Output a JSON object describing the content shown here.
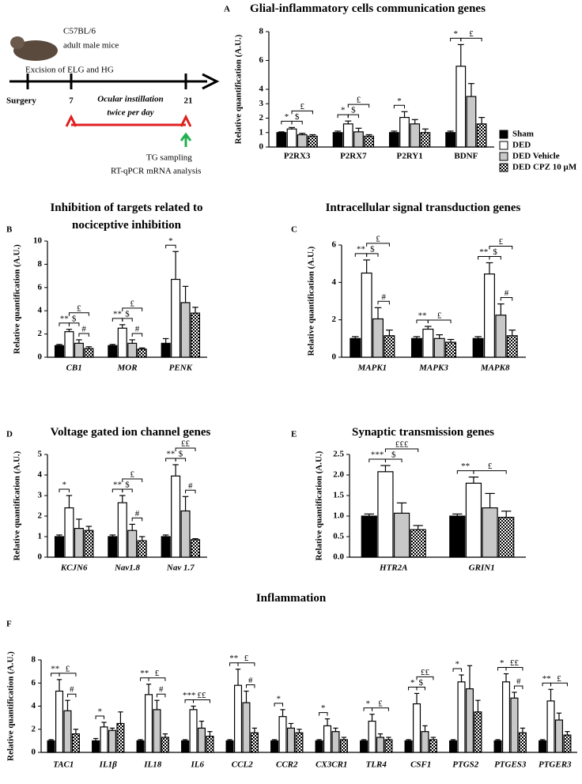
{
  "schematic": {
    "strain": "C57BL/6",
    "animals": "adult male mice",
    "procedure": "Excision of ELG and HG",
    "start": "Surgery",
    "day_start": "7",
    "treatment": "Ocular instillation",
    "frequency": "twice per day",
    "day_end": "21",
    "sampling": "TG sampling",
    "analysis": "RT-qPCR mRNA analysis"
  },
  "chart_data": [
    {
      "type": "bar",
      "panel": "A",
      "title": "Glial-inflammatory cells communication genes",
      "ylabel": "Relative quantification (A.U.)",
      "legend": "right",
      "italic_categories": false,
      "categories": [
        "P2RX3",
        "P2RX7",
        "P2RY1",
        "BDNF"
      ],
      "ylim": [
        0,
        8
      ],
      "yticks": [
        0,
        1,
        2,
        3,
        4,
        6,
        8
      ],
      "series": [
        {
          "name": "Sham",
          "color": "#000000",
          "values": [
            1,
            1,
            1,
            1
          ],
          "errors": [
            0.05,
            0.1,
            0.1,
            0.1
          ]
        },
        {
          "name": "DED",
          "color": "#ffffff",
          "values": [
            1.25,
            1.6,
            2.05,
            5.6
          ],
          "errors": [
            0.1,
            0.2,
            0.4,
            1.5
          ]
        },
        {
          "name": "DED Vehicle",
          "color": "#c8c8c8",
          "values": [
            0.85,
            1.05,
            1.6,
            3.5
          ],
          "errors": [
            0.1,
            0.25,
            0.3,
            0.9
          ]
        },
        {
          "name": "DED CPZ 10 µM",
          "color": "checker",
          "values": [
            0.75,
            0.75,
            1.0,
            1.6
          ],
          "errors": [
            0.1,
            0.1,
            0.25,
            0.45
          ]
        }
      ],
      "annotations": [
        {
          "label": "*",
          "category": 0,
          "from": 0,
          "to": 1
        },
        {
          "label": "$",
          "category": 0,
          "from": 1,
          "to": 2
        },
        {
          "label": "£",
          "category": 0,
          "from": 1,
          "to": 3
        },
        {
          "label": "*",
          "category": 1,
          "from": 0,
          "to": 1
        },
        {
          "label": "$",
          "category": 1,
          "from": 1,
          "to": 2
        },
        {
          "label": "£",
          "category": 1,
          "from": 1,
          "to": 3
        },
        {
          "label": "*",
          "category": 2,
          "from": 0,
          "to": 1
        },
        {
          "label": "*",
          "category": 3,
          "from": 0,
          "to": 1
        },
        {
          "label": "£",
          "category": 3,
          "from": 1,
          "to": 3
        }
      ]
    },
    {
      "type": "bar",
      "panel": "B",
      "title": "Inhibition of targets related to nociceptive inhibition",
      "ylabel": "Relative quantification (A.U.)",
      "italic_categories": true,
      "categories": [
        "CB1",
        "MOR",
        "PENK"
      ],
      "ylim": [
        0,
        10
      ],
      "yticks": [
        0,
        2,
        4,
        6,
        8,
        10
      ],
      "series": [
        {
          "color": "#000000",
          "values": [
            1,
            1,
            1.2
          ],
          "errors": [
            0.1,
            0.1,
            0.4
          ]
        },
        {
          "color": "#ffffff",
          "values": [
            2.2,
            2.5,
            6.7
          ],
          "errors": [
            0.2,
            0.3,
            2.4
          ]
        },
        {
          "color": "#c8c8c8",
          "values": [
            1.2,
            1.2,
            4.7
          ],
          "errors": [
            0.3,
            0.3,
            1.4
          ]
        },
        {
          "color": "checker",
          "values": [
            0.75,
            0.7,
            3.8
          ],
          "errors": [
            0.15,
            0.1,
            0.5
          ]
        }
      ],
      "annotations": [
        {
          "label": "**",
          "category": 0,
          "from": 0,
          "to": 1
        },
        {
          "label": "#",
          "category": 0,
          "from": 2,
          "to": 3
        },
        {
          "label": "$",
          "category": 0,
          "from": 1,
          "to": 2
        },
        {
          "label": "£",
          "category": 0,
          "from": 1,
          "to": 3
        },
        {
          "label": "**",
          "category": 1,
          "from": 0,
          "to": 1
        },
        {
          "label": "#",
          "category": 1,
          "from": 2,
          "to": 3
        },
        {
          "label": "$",
          "category": 1,
          "from": 1,
          "to": 2
        },
        {
          "label": "£",
          "category": 1,
          "from": 1,
          "to": 3
        },
        {
          "label": "*",
          "category": 2,
          "from": 0,
          "to": 1
        }
      ]
    },
    {
      "type": "bar",
      "panel": "C",
      "title": "Intracellular signal transduction genes",
      "ylabel": "Relative quantification (A.U.)",
      "italic_categories": true,
      "categories": [
        "MAPK1",
        "MAPK3",
        "MAPK8"
      ],
      "ylim": [
        0,
        6
      ],
      "yticks": [
        0,
        2,
        4,
        6
      ],
      "series": [
        {
          "color": "#000000",
          "values": [
            1,
            1,
            1
          ],
          "errors": [
            0.1,
            0.1,
            0.1
          ]
        },
        {
          "color": "#ffffff",
          "values": [
            4.5,
            1.5,
            4.45
          ],
          "errors": [
            0.7,
            0.15,
            0.6
          ]
        },
        {
          "color": "#c8c8c8",
          "values": [
            2.05,
            1.0,
            2.25
          ],
          "errors": [
            0.6,
            0.2,
            0.6
          ]
        },
        {
          "color": "checker",
          "values": [
            1.15,
            0.8,
            1.15
          ],
          "errors": [
            0.3,
            0.15,
            0.3
          ]
        }
      ],
      "annotations": [
        {
          "label": "**",
          "category": 0,
          "from": 0,
          "to": 1
        },
        {
          "label": "#",
          "category": 0,
          "from": 2,
          "to": 3
        },
        {
          "label": "$",
          "category": 0,
          "from": 1,
          "to": 2
        },
        {
          "label": "£",
          "category": 0,
          "from": 1,
          "to": 3
        },
        {
          "label": "**",
          "category": 1,
          "from": 0,
          "to": 1
        },
        {
          "label": "£",
          "category": 1,
          "from": 1,
          "to": 3
        },
        {
          "label": "**",
          "category": 2,
          "from": 0,
          "to": 1
        },
        {
          "label": "#",
          "category": 2,
          "from": 2,
          "to": 3
        },
        {
          "label": "$",
          "category": 2,
          "from": 1,
          "to": 2
        },
        {
          "label": "£",
          "category": 2,
          "from": 1,
          "to": 3
        }
      ]
    },
    {
      "type": "bar",
      "panel": "D",
      "title": "Voltage gated ion channel genes",
      "ylabel": "Relative quantification (A.U.)",
      "italic_categories": true,
      "categories": [
        "KCJN6",
        "Nav1.8",
        "Nav 1.7"
      ],
      "ylim": [
        0,
        5
      ],
      "yticks": [
        0,
        1,
        2,
        3,
        4,
        5
      ],
      "series": [
        {
          "color": "#000000",
          "values": [
            1,
            1,
            1
          ],
          "errors": [
            0.08,
            0.08,
            0.08
          ]
        },
        {
          "color": "#ffffff",
          "values": [
            2.4,
            2.65,
            3.95
          ],
          "errors": [
            0.6,
            0.35,
            0.55
          ]
        },
        {
          "color": "#c8c8c8",
          "values": [
            1.4,
            1.3,
            2.25
          ],
          "errors": [
            0.45,
            0.3,
            0.7
          ]
        },
        {
          "color": "checker",
          "values": [
            1.3,
            0.8,
            0.85
          ],
          "errors": [
            0.2,
            0.2,
            0.05
          ]
        }
      ],
      "annotations": [
        {
          "label": "*",
          "category": 0,
          "from": 0,
          "to": 1
        },
        {
          "label": "**",
          "category": 1,
          "from": 0,
          "to": 1
        },
        {
          "label": "#",
          "category": 1,
          "from": 2,
          "to": 3
        },
        {
          "label": "$",
          "category": 1,
          "from": 1,
          "to": 2
        },
        {
          "label": "£",
          "category": 1,
          "from": 1,
          "to": 3
        },
        {
          "label": "**",
          "category": 2,
          "from": 0,
          "to": 1
        },
        {
          "label": "#",
          "category": 2,
          "from": 2,
          "to": 3
        },
        {
          "label": "$",
          "category": 2,
          "from": 1,
          "to": 2
        },
        {
          "label": "££",
          "category": 2,
          "from": 1,
          "to": 3
        }
      ]
    },
    {
      "type": "bar",
      "panel": "E",
      "title": "Synaptic transmission genes",
      "ylabel": "Relative quantification (A.U.)",
      "italic_categories": true,
      "categories": [
        "HTR2A",
        "GRIN1"
      ],
      "ylim": [
        0,
        2.5
      ],
      "yticks": [
        {
          "value": 0,
          "label": "0.0"
        },
        {
          "value": 0.5,
          "label": "0.5"
        },
        {
          "value": 1,
          "label": "1.0"
        },
        {
          "value": 1.5,
          "label": "1.5"
        },
        {
          "value": 2,
          "label": "2.0"
        },
        {
          "value": 2.5,
          "label": "2.5"
        }
      ],
      "series": [
        {
          "color": "#000000",
          "values": [
            1,
            1
          ],
          "errors": [
            0.05,
            0.05
          ]
        },
        {
          "color": "#ffffff",
          "values": [
            2.08,
            1.8
          ],
          "errors": [
            0.15,
            0.15
          ]
        },
        {
          "color": "#c8c8c8",
          "values": [
            1.07,
            1.2
          ],
          "errors": [
            0.25,
            0.35
          ]
        },
        {
          "color": "checker",
          "values": [
            0.67,
            0.97
          ],
          "errors": [
            0.1,
            0.15
          ]
        }
      ],
      "annotations": [
        {
          "label": "***",
          "category": 0,
          "from": 0,
          "to": 1
        },
        {
          "label": "$",
          "category": 0,
          "from": 1,
          "to": 2
        },
        {
          "label": "£££",
          "category": 0,
          "from": 1,
          "to": 3
        },
        {
          "label": "**",
          "category": 1,
          "from": 0,
          "to": 1
        },
        {
          "label": "£",
          "category": 1,
          "from": 1,
          "to": 3
        }
      ]
    },
    {
      "type": "bar",
      "panel": "F",
      "title": "Inflammation",
      "ylabel": "Relative quantification (A.U.)",
      "italic_categories": true,
      "categories": [
        "TAC1",
        "IL1β",
        "IL18",
        "IL6",
        "CCL2",
        "CCR2",
        "CX3CR1",
        "TLR4",
        "CSF1",
        "PTGS2",
        "PTGES3",
        "PTGER3"
      ],
      "ylim": [
        0,
        8
      ],
      "yticks": [
        0,
        2,
        4,
        6,
        8
      ],
      "series": [
        {
          "color": "#000000",
          "values": [
            1,
            1,
            1,
            1,
            1,
            1,
            1,
            1,
            1,
            1,
            1,
            1
          ],
          "errors": [
            0.1,
            0.2,
            0.1,
            0.1,
            0.1,
            0.1,
            0.1,
            0.1,
            0.1,
            0.1,
            0.1,
            0.1
          ]
        },
        {
          "color": "#ffffff",
          "values": [
            5.3,
            2.2,
            5.0,
            3.7,
            5.8,
            3.1,
            2.3,
            2.7,
            4.2,
            6.1,
            6.1,
            4.45
          ],
          "errors": [
            1.0,
            0.4,
            0.9,
            0.3,
            1.4,
            0.6,
            0.6,
            0.6,
            0.9,
            0.6,
            0.7,
            1.0
          ]
        },
        {
          "color": "#c8c8c8",
          "values": [
            3.6,
            1.9,
            3.7,
            2.1,
            4.3,
            2.1,
            1.8,
            1.3,
            1.8,
            5.5,
            4.7,
            2.8
          ],
          "errors": [
            0.9,
            0.2,
            0.8,
            0.6,
            1.0,
            0.4,
            0.3,
            0.3,
            0.5,
            2.0,
            0.5,
            0.6
          ]
        },
        {
          "color": "checker",
          "values": [
            1.6,
            2.5,
            1.3,
            1.4,
            1.7,
            1.7,
            1.1,
            1.1,
            1.1,
            3.5,
            1.7,
            1.5
          ],
          "errors": [
            0.4,
            1.0,
            0.3,
            0.4,
            0.4,
            0.3,
            0.2,
            0.2,
            0.2,
            1.0,
            0.4,
            0.3
          ]
        }
      ],
      "annotations": [
        {
          "label": "**",
          "category": 0,
          "from": 0,
          "to": 1
        },
        {
          "label": "#",
          "category": 0,
          "from": 2,
          "to": 3
        },
        {
          "label": "£",
          "category": 0,
          "from": 1,
          "to": 3
        },
        {
          "label": "*",
          "category": 1,
          "from": 0,
          "to": 1
        },
        {
          "label": "**",
          "category": 2,
          "from": 0,
          "to": 1
        },
        {
          "label": "#",
          "category": 2,
          "from": 2,
          "to": 3
        },
        {
          "label": "£",
          "category": 2,
          "from": 1,
          "to": 3
        },
        {
          "label": "***",
          "category": 3,
          "from": 0,
          "to": 1
        },
        {
          "label": "££",
          "category": 3,
          "from": 1,
          "to": 3
        },
        {
          "label": "**",
          "category": 4,
          "from": 0,
          "to": 1
        },
        {
          "label": "#",
          "category": 4,
          "from": 2,
          "to": 3
        },
        {
          "label": "£",
          "category": 4,
          "from": 1,
          "to": 3
        },
        {
          "label": "*",
          "category": 5,
          "from": 0,
          "to": 1
        },
        {
          "label": "*",
          "category": 6,
          "from": 0,
          "to": 1
        },
        {
          "label": "*",
          "category": 7,
          "from": 0,
          "to": 1
        },
        {
          "label": "£",
          "category": 7,
          "from": 1,
          "to": 3
        },
        {
          "label": "*",
          "category": 8,
          "from": 0,
          "to": 1
        },
        {
          "label": "$",
          "category": 8,
          "from": 1,
          "to": 2
        },
        {
          "label": "££",
          "category": 8,
          "from": 1,
          "to": 3
        },
        {
          "label": "*",
          "category": 9,
          "from": 0,
          "to": 1
        },
        {
          "label": "*",
          "category": 10,
          "from": 0,
          "to": 1
        },
        {
          "label": "#",
          "category": 10,
          "from": 2,
          "to": 3
        },
        {
          "label": "££",
          "category": 10,
          "from": 1,
          "to": 3
        },
        {
          "label": "**",
          "category": 11,
          "from": 0,
          "to": 1
        },
        {
          "label": "£",
          "category": 11,
          "from": 1,
          "to": 3
        }
      ]
    }
  ]
}
